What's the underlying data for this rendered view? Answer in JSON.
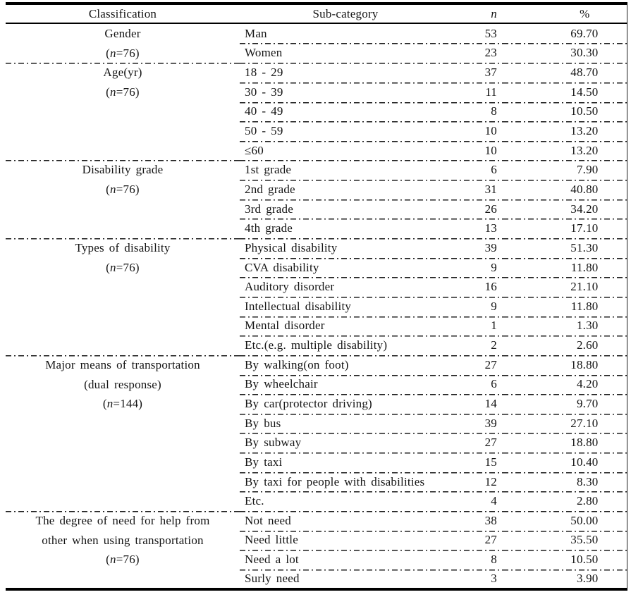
{
  "colors": {
    "ink": "#141414",
    "rule": "#000000",
    "background": "#ffffff"
  },
  "table": {
    "columns": {
      "classification": "Classification",
      "sub_category": "Sub-category",
      "n": "n",
      "pct": "%"
    },
    "groups": [
      {
        "cls_lines": [
          [
            {
              "text": "Gender",
              "italic": false
            }
          ],
          [
            {
              "text": "(",
              "italic": false
            },
            {
              "text": "n",
              "italic": true
            },
            {
              "text": "=76)",
              "italic": false
            }
          ]
        ],
        "rows": [
          {
            "sub": "Man",
            "n": "53",
            "pct": "69.70"
          },
          {
            "sub": "Women",
            "n": "23",
            "pct": "30.30"
          }
        ]
      },
      {
        "cls_lines": [
          [
            {
              "text": "Age(yr)",
              "italic": false
            }
          ],
          [
            {
              "text": "(",
              "italic": false
            },
            {
              "text": "n",
              "italic": true
            },
            {
              "text": "=76)",
              "italic": false
            }
          ]
        ],
        "rows": [
          {
            "sub": "18 - 29",
            "n": "37",
            "pct": "48.70"
          },
          {
            "sub": "30 - 39",
            "n": "11",
            "pct": "14.50"
          },
          {
            "sub": "40 - 49",
            "n": "8",
            "pct": "10.50"
          },
          {
            "sub": "50 - 59",
            "n": "10",
            "pct": "13.20"
          },
          {
            "sub": "≤60",
            "n": "10",
            "pct": "13.20"
          }
        ]
      },
      {
        "cls_lines": [
          [
            {
              "text": "Disability grade",
              "italic": false
            }
          ],
          [
            {
              "text": "(",
              "italic": false
            },
            {
              "text": "n",
              "italic": true
            },
            {
              "text": "=76)",
              "italic": false
            }
          ]
        ],
        "rows": [
          {
            "sub": "1st grade",
            "n": "6",
            "pct": "7.90"
          },
          {
            "sub": "2nd grade",
            "n": "31",
            "pct": "40.80"
          },
          {
            "sub": "3rd grade",
            "n": "26",
            "pct": "34.20"
          },
          {
            "sub": "4th grade",
            "n": "13",
            "pct": "17.10"
          }
        ]
      },
      {
        "cls_lines": [
          [
            {
              "text": "Types of disability",
              "italic": false
            }
          ],
          [
            {
              "text": "(",
              "italic": false
            },
            {
              "text": "n",
              "italic": true
            },
            {
              "text": "=76)",
              "italic": false
            }
          ]
        ],
        "rows": [
          {
            "sub": "Physical disability",
            "n": "39",
            "pct": "51.30"
          },
          {
            "sub": "CVA disability",
            "n": "9",
            "pct": "11.80"
          },
          {
            "sub": "Auditory disorder",
            "n": "16",
            "pct": "21.10"
          },
          {
            "sub": "Intellectual disability",
            "n": "9",
            "pct": "11.80"
          },
          {
            "sub": "Mental disorder",
            "n": "1",
            "pct": "1.30"
          },
          {
            "sub": "Etc.(e.g. multiple disability)",
            "n": "2",
            "pct": "2.60"
          }
        ]
      },
      {
        "cls_lines": [
          [
            {
              "text": "Major means of transportation",
              "italic": false
            }
          ],
          [
            {
              "text": "(dual response)",
              "italic": false
            }
          ],
          [
            {
              "text": "(",
              "italic": false
            },
            {
              "text": "n",
              "italic": true
            },
            {
              "text": "=144)",
              "italic": false
            }
          ]
        ],
        "rows": [
          {
            "sub": "By walking(on foot)",
            "n": "27",
            "pct": "18.80"
          },
          {
            "sub": "By wheelchair",
            "n": "6",
            "pct": "4.20"
          },
          {
            "sub": "By car(protector driving)",
            "n": "14",
            "pct": "9.70"
          },
          {
            "sub": "By bus",
            "n": "39",
            "pct": "27.10"
          },
          {
            "sub": "By subway",
            "n": "27",
            "pct": "18.80"
          },
          {
            "sub": "By taxi",
            "n": "15",
            "pct": "10.40"
          },
          {
            "sub": "By taxi for people with disabilities",
            "n": "12",
            "pct": "8.30"
          },
          {
            "sub": "Etc.",
            "n": "4",
            "pct": "2.80"
          }
        ]
      },
      {
        "cls_lines": [
          [
            {
              "text": "The degree of need for help from",
              "italic": false
            }
          ],
          [
            {
              "text": "other when using transportation",
              "italic": false
            }
          ],
          [
            {
              "text": "(",
              "italic": false
            },
            {
              "text": "n",
              "italic": true
            },
            {
              "text": "=76)",
              "italic": false
            }
          ]
        ],
        "rows": [
          {
            "sub": "Not need",
            "n": "38",
            "pct": "50.00"
          },
          {
            "sub": "Need little",
            "n": "27",
            "pct": "35.50"
          },
          {
            "sub": "Need a lot",
            "n": "8",
            "pct": "10.50"
          },
          {
            "sub": "Surly need",
            "n": "3",
            "pct": "3.90"
          }
        ]
      }
    ]
  }
}
